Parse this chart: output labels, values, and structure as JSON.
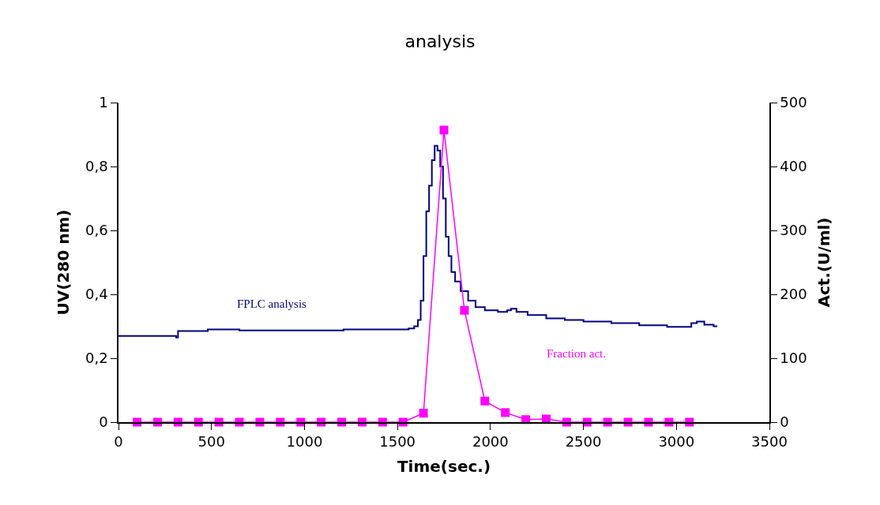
{
  "chart_data": {
    "type": "line",
    "title": "analysis",
    "xlabel": "Time(sec.)",
    "ylabel": "UV(280 nm)",
    "y2label": "Act.(U/ml)",
    "xlim": [
      0,
      3500
    ],
    "xticks": [
      0,
      500,
      1000,
      1500,
      2000,
      2500,
      3000,
      3500
    ],
    "ylim": [
      0,
      1
    ],
    "yticks": [
      {
        "value": 0,
        "label": "0"
      },
      {
        "value": 0.2,
        "label": "0,2"
      },
      {
        "value": 0.4,
        "label": "0,4"
      },
      {
        "value": 0.6,
        "label": "0,6"
      },
      {
        "value": 0.8,
        "label": "0,8"
      },
      {
        "value": 1,
        "label": "1"
      }
    ],
    "y2lim": [
      0,
      500
    ],
    "y2ticks": [
      0,
      100,
      200,
      300,
      400,
      500
    ],
    "legend": false,
    "series": [
      {
        "name": "FPLC analysis",
        "color": "#000080",
        "type": "step",
        "marker": "none",
        "x": [
          0,
          300,
          310,
          320,
          470,
          480,
          640,
          650,
          1200,
          1210,
          1520,
          1560,
          1590,
          1610,
          1625,
          1640,
          1655,
          1670,
          1685,
          1700,
          1715,
          1730,
          1745,
          1760,
          1775,
          1790,
          1810,
          1840,
          1880,
          1920,
          1970,
          2040,
          2090,
          2110,
          2140,
          2200,
          2300,
          2400,
          2500,
          2650,
          2800,
          2950,
          3050,
          3080,
          3110,
          3150,
          3200,
          3220
        ],
        "values": [
          0.27,
          0.27,
          0.265,
          0.285,
          0.285,
          0.29,
          0.29,
          0.287,
          0.287,
          0.29,
          0.29,
          0.293,
          0.3,
          0.32,
          0.38,
          0.52,
          0.66,
          0.74,
          0.82,
          0.865,
          0.85,
          0.8,
          0.7,
          0.58,
          0.52,
          0.47,
          0.44,
          0.41,
          0.38,
          0.36,
          0.35,
          0.345,
          0.35,
          0.355,
          0.345,
          0.335,
          0.325,
          0.32,
          0.315,
          0.31,
          0.303,
          0.298,
          0.298,
          0.31,
          0.315,
          0.305,
          0.3,
          0.3
        ]
      },
      {
        "name": "Fraction act.",
        "color": "#ff00ff",
        "marker": "square",
        "axis": "y2",
        "x": [
          100,
          210,
          320,
          430,
          540,
          650,
          760,
          870,
          980,
          1090,
          1200,
          1310,
          1420,
          1530,
          1640,
          1750,
          1860,
          1970,
          2080,
          2190,
          2300,
          2410,
          2520,
          2630,
          2740,
          2850,
          2960,
          3070
        ],
        "values": [
          0,
          0,
          0,
          0,
          0,
          0,
          0,
          0,
          0,
          0,
          0,
          0,
          0,
          0,
          14,
          457,
          175,
          33,
          15,
          4,
          5,
          0,
          0,
          0,
          0,
          0,
          0,
          0
        ]
      }
    ]
  }
}
